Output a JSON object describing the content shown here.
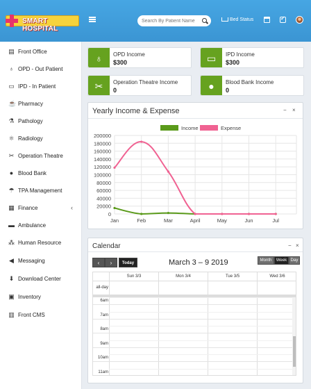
{
  "header": {
    "logo_text": "SMART HOSPITAL",
    "search_placeholder": "Search By Patient Name",
    "bed_status": "Bed Status"
  },
  "sidebar": {
    "items": [
      {
        "label": "Front Office",
        "icon": "front-office-icon",
        "glyph": "▤"
      },
      {
        "label": "OPD - Out Patient",
        "icon": "stethoscope-icon",
        "glyph": "♁"
      },
      {
        "label": "IPD - In Patient",
        "icon": "bed-icon",
        "glyph": "▭"
      },
      {
        "label": "Pharmacy",
        "icon": "mortar-icon",
        "glyph": "☕"
      },
      {
        "label": "Pathology",
        "icon": "flask-icon",
        "glyph": "⚗"
      },
      {
        "label": "Radiology",
        "icon": "microscope-icon",
        "glyph": "⚛"
      },
      {
        "label": "Operation Theatre",
        "icon": "scissors-icon",
        "glyph": "✂"
      },
      {
        "label": "Blood Bank",
        "icon": "drop-icon",
        "glyph": "●"
      },
      {
        "label": "TPA Management",
        "icon": "umbrella-icon",
        "glyph": "☂"
      },
      {
        "label": "Finance",
        "icon": "money-icon",
        "glyph": "▦"
      },
      {
        "label": "Ambulance",
        "icon": "ambulance-icon",
        "glyph": "▬"
      },
      {
        "label": "Human Resource",
        "icon": "sitemap-icon",
        "glyph": "⁂"
      },
      {
        "label": "Messaging",
        "icon": "bullhorn-icon",
        "glyph": "◀"
      },
      {
        "label": "Download Center",
        "icon": "download-icon",
        "glyph": "⬇"
      },
      {
        "label": "Inventory",
        "icon": "inventory-icon",
        "glyph": "▣"
      },
      {
        "label": "Front CMS",
        "icon": "cms-icon",
        "glyph": "▥"
      }
    ],
    "finance_chevron": "‹"
  },
  "cards": [
    {
      "title": "OPD Income",
      "value": "$300",
      "icon": "stethoscope-icon",
      "glyph": "♁"
    },
    {
      "title": "IPD Income",
      "value": "$300",
      "icon": "bed-icon",
      "glyph": "▭"
    },
    {
      "title": "Operation Theatre Income",
      "value": "0",
      "icon": "scissors-icon",
      "glyph": "✂"
    },
    {
      "title": "Blood Bank Income",
      "value": "0",
      "icon": "drop-icon",
      "glyph": "●"
    }
  ],
  "chart_panel": {
    "title": "Yearly Income & Expense",
    "minimize": "−",
    "close": "×"
  },
  "chart_data": {
    "type": "line",
    "categories": [
      "Jan",
      "Feb",
      "Mar",
      "April",
      "May",
      "Jun",
      "Jul"
    ],
    "series": [
      {
        "name": "Income",
        "color": "#5a9a1a",
        "values": [
          15000,
          0,
          2500,
          0,
          0,
          0,
          0
        ]
      },
      {
        "name": "Expense",
        "color": "#f06292",
        "values": [
          118000,
          184000,
          108000,
          0,
          0,
          0,
          0
        ]
      }
    ],
    "ylim": [
      0,
      200000
    ],
    "yticks": [
      0,
      20000,
      40000,
      60000,
      80000,
      100000,
      120000,
      140000,
      160000,
      180000,
      200000
    ],
    "legend": "top",
    "grid": true
  },
  "calendar": {
    "title": "Calendar",
    "minimize": "−",
    "close": "×",
    "prev": "‹",
    "next": "›",
    "today": "Today",
    "range": "March 3 – 9 2019",
    "views": [
      "Month",
      "Week",
      "Day"
    ],
    "active_view": "Week",
    "columns": [
      "Sun 3/3",
      "Mon 3/4",
      "Tue 3/5",
      "Wed 3/6"
    ],
    "allday": "all-day",
    "times": [
      "6am",
      "7am",
      "8am",
      "9am",
      "10am",
      "11am"
    ]
  }
}
